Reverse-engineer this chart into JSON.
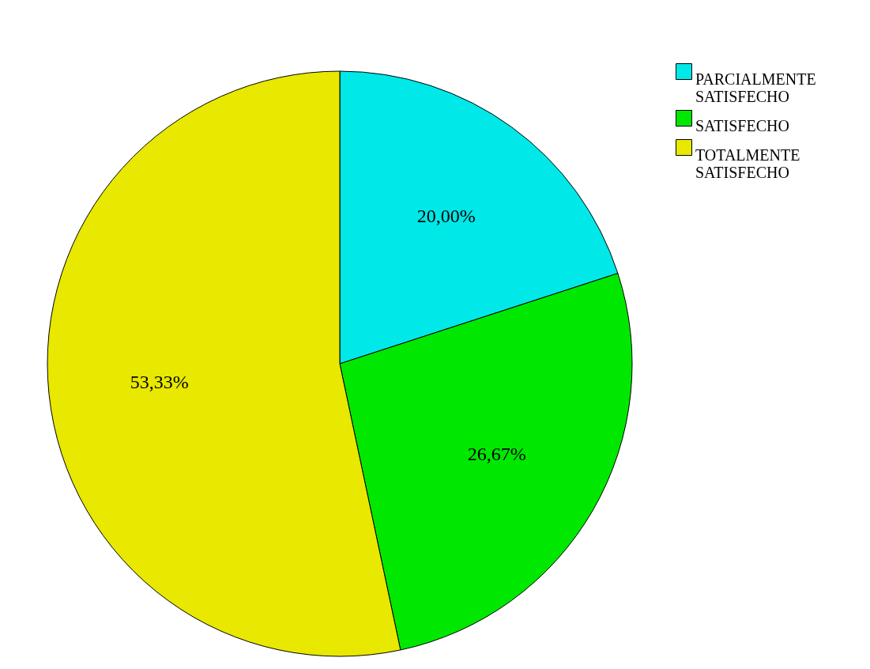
{
  "chart_data": {
    "type": "pie",
    "categories": [
      "PARCIALMENTE SATISFECHO",
      "SATISFECHO",
      "TOTALMENTE SATISFECHO"
    ],
    "values": [
      20.0,
      26.67,
      53.33
    ],
    "colors": [
      "#00e8e8",
      "#00e800",
      "#e8e800"
    ],
    "value_labels": [
      "20,00%",
      "26,67%",
      "53,33%"
    ],
    "legend": "top right"
  }
}
